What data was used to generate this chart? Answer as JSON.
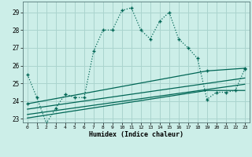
{
  "title": "",
  "xlabel": "Humidex (Indice chaleur)",
  "bg_color": "#cceee8",
  "grid_color": "#aad4ce",
  "line_color": "#006655",
  "xlim": [
    -0.5,
    23.5
  ],
  "ylim": [
    22.8,
    29.6
  ],
  "yticks": [
    23,
    24,
    25,
    26,
    27,
    28,
    29
  ],
  "xticks": [
    0,
    1,
    2,
    3,
    4,
    5,
    6,
    7,
    8,
    9,
    10,
    11,
    12,
    13,
    14,
    15,
    16,
    17,
    18,
    19,
    20,
    21,
    22,
    23
  ],
  "main_x": [
    0,
    1,
    2,
    3,
    4,
    5,
    6,
    7,
    8,
    9,
    10,
    11,
    12,
    13,
    14,
    15,
    16,
    17,
    18,
    19,
    20,
    21,
    22,
    23
  ],
  "main_y": [
    25.5,
    24.2,
    22.75,
    23.6,
    24.4,
    24.2,
    24.2,
    26.8,
    28.0,
    28.0,
    29.1,
    29.25,
    28.0,
    27.5,
    28.5,
    29.0,
    27.5,
    27.0,
    26.4,
    24.1,
    24.5,
    24.5,
    24.6,
    25.8
  ],
  "trend1_x": [
    0,
    23
  ],
  "trend1_y": [
    23.55,
    25.3
  ],
  "trend2_x": [
    0,
    23
  ],
  "trend2_y": [
    23.25,
    24.95
  ],
  "trend3_x": [
    0,
    19,
    23
  ],
  "trend3_y": [
    23.05,
    24.6,
    24.6
  ],
  "line3_x": [
    0,
    19,
    23
  ],
  "line3_y": [
    23.85,
    25.7,
    25.85
  ]
}
